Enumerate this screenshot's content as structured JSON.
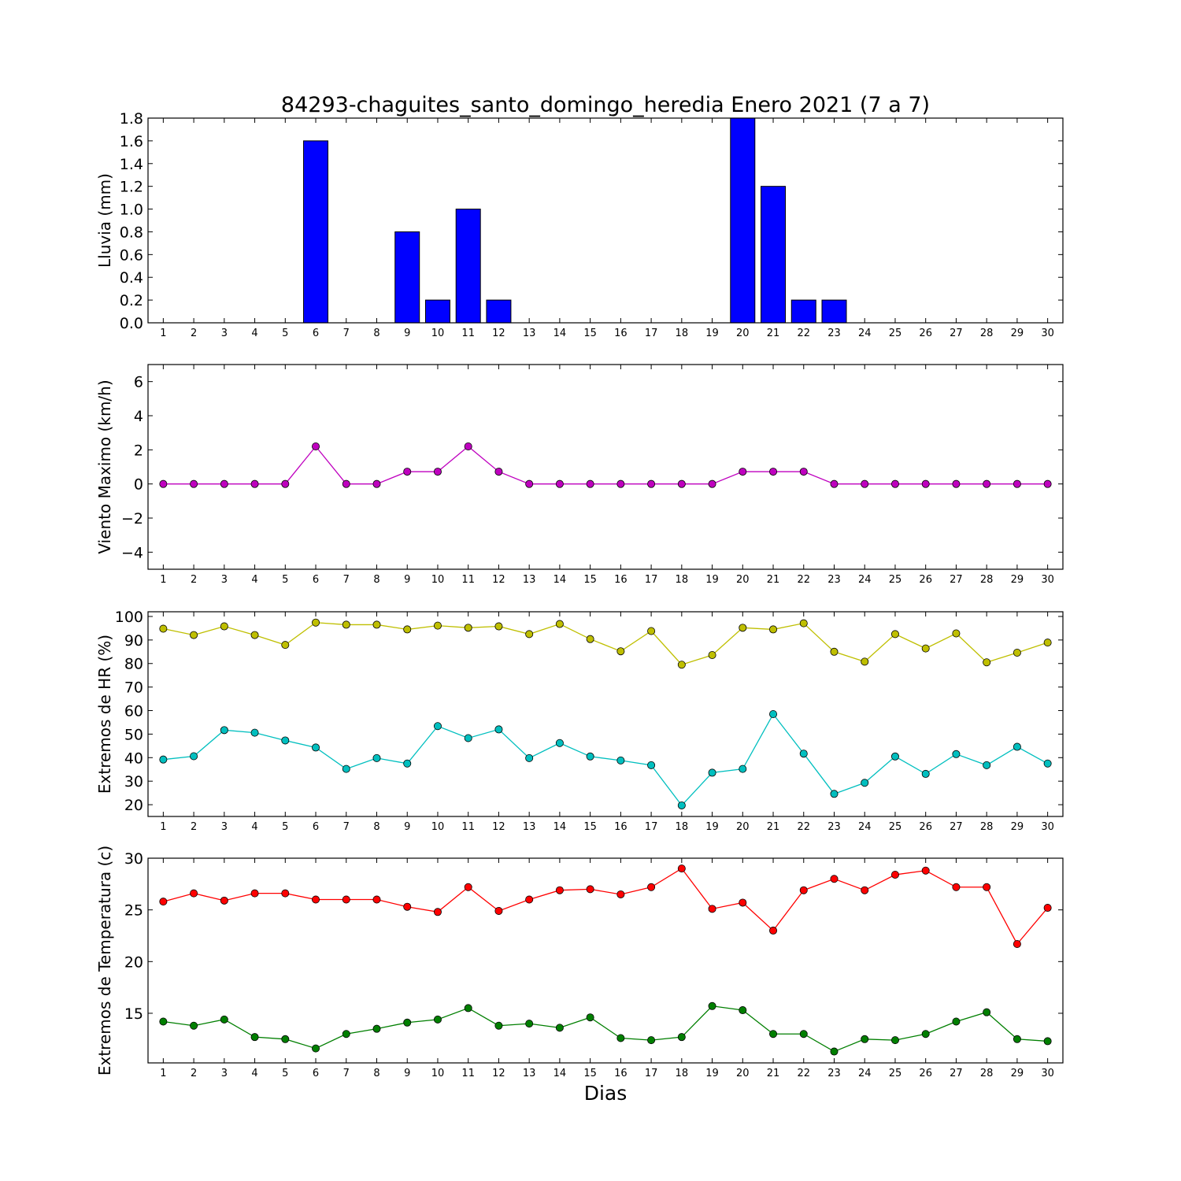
{
  "title": "84293-chaguites_santo_domingo_heredia Enero 2021  (7 a 7)",
  "xlabel": "Dias",
  "chart_data": [
    {
      "type": "bar",
      "ylabel": "Lluvia (mm)",
      "ylim": [
        0,
        1.8
      ],
      "yticks": [
        0.0,
        0.2,
        0.4,
        0.6,
        0.8,
        1.0,
        1.2,
        1.4,
        1.6,
        1.8
      ],
      "ytick_labels": [
        "0.0",
        "0.2",
        "0.4",
        "0.6",
        "0.8",
        "1.0",
        "1.2",
        "1.4",
        "1.6",
        "1.8"
      ],
      "categories": [
        1,
        2,
        3,
        4,
        5,
        6,
        7,
        8,
        9,
        10,
        11,
        12,
        13,
        14,
        15,
        16,
        17,
        18,
        19,
        20,
        21,
        22,
        23,
        24,
        25,
        26,
        27,
        28,
        29,
        30
      ],
      "series": [
        {
          "color": "#0000ff",
          "values": [
            0,
            0,
            0,
            0,
            0,
            1.6,
            0,
            0,
            0.8,
            0.2,
            1.0,
            0.2,
            0,
            0,
            0,
            0,
            0,
            0,
            0,
            1.8,
            1.2,
            0.2,
            0.2,
            0,
            0,
            0,
            0,
            0,
            0,
            0
          ]
        }
      ],
      "grid": false
    },
    {
      "type": "line",
      "ylabel": "Viento Maximo (km/h)",
      "ylim": [
        -5,
        7
      ],
      "yticks": [
        -4,
        -2,
        0,
        2,
        4,
        6
      ],
      "ytick_labels": [
        "−4",
        "−2",
        "0",
        "2",
        "4",
        "6"
      ],
      "x": [
        1,
        2,
        3,
        4,
        5,
        6,
        7,
        8,
        9,
        10,
        11,
        12,
        13,
        14,
        15,
        16,
        17,
        18,
        19,
        20,
        21,
        22,
        23,
        24,
        25,
        26,
        27,
        28,
        29,
        30
      ],
      "series": [
        {
          "color": "#bf00bf",
          "values": [
            0,
            0,
            0,
            0,
            0,
            2.2,
            0,
            0,
            0.72,
            0.72,
            2.2,
            0.72,
            0,
            0,
            0,
            0,
            0,
            0,
            0,
            0.72,
            0.72,
            0.72,
            0,
            0,
            0,
            0,
            0,
            0,
            0,
            0
          ]
        }
      ],
      "grid": false
    },
    {
      "type": "line",
      "ylabel": "Extremos de HR (%)",
      "ylim": [
        15,
        102
      ],
      "yticks": [
        20,
        30,
        40,
        50,
        60,
        70,
        80,
        90,
        100
      ],
      "ytick_labels": [
        "20",
        "30",
        "40",
        "50",
        "60",
        "70",
        "80",
        "90",
        "100"
      ],
      "x": [
        1,
        2,
        3,
        4,
        5,
        6,
        7,
        8,
        9,
        10,
        11,
        12,
        13,
        14,
        15,
        16,
        17,
        18,
        19,
        20,
        21,
        22,
        23,
        24,
        25,
        26,
        27,
        28,
        29,
        30
      ],
      "series": [
        {
          "color": "#bfbf00",
          "values": [
            94.8,
            92.1,
            95.8,
            92.1,
            87.9,
            97.4,
            96.5,
            96.5,
            94.5,
            96.1,
            95.2,
            95.8,
            92.5,
            96.8,
            90.4,
            85.2,
            93.8,
            79.5,
            83.6,
            95.2,
            94.5,
            97.1,
            85.0,
            80.8,
            92.5,
            86.4,
            92.8,
            80.5,
            84.6,
            88.9
          ]
        },
        {
          "color": "#00bfbf",
          "values": [
            39.2,
            40.6,
            51.7,
            50.6,
            47.3,
            44.3,
            35.2,
            39.8,
            37.5,
            53.4,
            48.3,
            52.0,
            39.8,
            46.2,
            40.5,
            38.8,
            36.8,
            19.7,
            33.6,
            35.2,
            58.5,
            41.7,
            24.6,
            29.3,
            40.5,
            33.1,
            41.5,
            36.8,
            44.6,
            37.5
          ]
        }
      ],
      "grid": false
    },
    {
      "type": "line",
      "ylabel": "Extremos de Temperatura (c)",
      "ylim": [
        10.2,
        30
      ],
      "yticks": [
        15,
        20,
        25,
        30
      ],
      "ytick_labels": [
        "15",
        "20",
        "25",
        "30"
      ],
      "x": [
        1,
        2,
        3,
        4,
        5,
        6,
        7,
        8,
        9,
        10,
        11,
        12,
        13,
        14,
        15,
        16,
        17,
        18,
        19,
        20,
        21,
        22,
        23,
        24,
        25,
        26,
        27,
        28,
        29,
        30
      ],
      "series": [
        {
          "color": "#ff0000",
          "values": [
            25.8,
            26.6,
            25.9,
            26.6,
            26.6,
            26.0,
            26.0,
            26.0,
            25.3,
            24.8,
            27.2,
            24.9,
            26.0,
            26.9,
            27.0,
            26.5,
            27.2,
            29.0,
            25.1,
            25.7,
            23.0,
            26.9,
            28.0,
            26.9,
            28.4,
            28.8,
            27.2,
            27.2,
            21.7,
            25.2
          ]
        },
        {
          "color": "#007f00",
          "values": [
            14.2,
            13.8,
            14.4,
            12.7,
            12.5,
            11.6,
            13.0,
            13.5,
            14.1,
            14.4,
            15.5,
            13.8,
            14.0,
            13.6,
            14.6,
            12.6,
            12.4,
            12.7,
            15.7,
            15.3,
            13.0,
            13.0,
            11.3,
            12.5,
            12.4,
            13.0,
            14.2,
            15.1,
            12.5,
            12.3
          ]
        }
      ],
      "grid": false
    }
  ]
}
